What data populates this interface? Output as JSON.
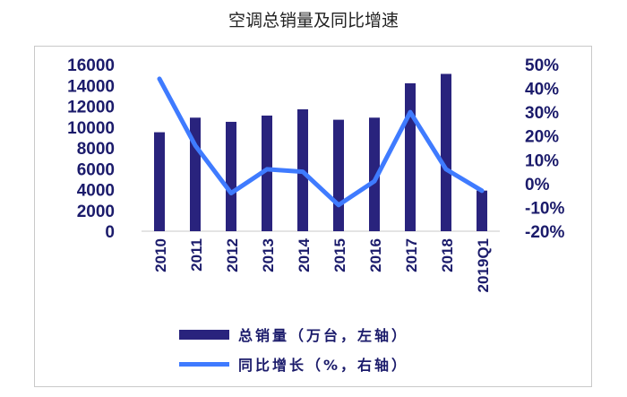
{
  "chart_data": {
    "type": "bar+line",
    "title": "空调总销量及同比增速",
    "categories": [
      "2010",
      "2011",
      "2012",
      "2013",
      "2014",
      "2015",
      "2016",
      "2017",
      "2018",
      "2019Q1"
    ],
    "series": [
      {
        "name": "总销量（万台，左轴）",
        "type": "bar",
        "axis": "left",
        "color": "#29237d",
        "values": [
          9500,
          10900,
          10500,
          11100,
          11700,
          10700,
          10900,
          14200,
          15100,
          3900
        ]
      },
      {
        "name": "同比增长（%，右轴）",
        "type": "line",
        "axis": "right",
        "color": "#3f7bff",
        "values": [
          44,
          16,
          -4,
          6,
          5,
          -9,
          1,
          30,
          6,
          -3
        ]
      }
    ],
    "y_left": {
      "min": 0,
      "max": 16000,
      "ticks": [
        "0",
        "2000",
        "4000",
        "6000",
        "8000",
        "10000",
        "12000",
        "14000",
        "16000"
      ]
    },
    "y_right": {
      "min": -20,
      "max": 50,
      "ticks": [
        "-20%",
        "-10%",
        "0%",
        "10%",
        "20%",
        "30%",
        "40%",
        "50%"
      ]
    },
    "grid": false,
    "legend_position": "bottom"
  }
}
